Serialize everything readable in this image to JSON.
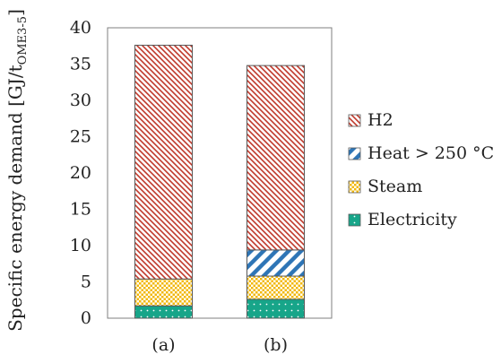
{
  "chart_data": {
    "type": "bar",
    "stacked": true,
    "categories": [
      "(a)",
      "(b)"
    ],
    "series": [
      {
        "name": "Electricity",
        "values": [
          1.7,
          2.6
        ],
        "color": "#17a589",
        "pattern": "dots"
      },
      {
        "name": "Steam",
        "values": [
          3.7,
          3.2
        ],
        "color": "#f2b705",
        "pattern": "checker"
      },
      {
        "name": "Heat > 250 °C",
        "values": [
          0.0,
          3.6
        ],
        "color": "#2e75b6",
        "pattern": "diagonal-stripes"
      },
      {
        "name": "H2",
        "values": [
          32.2,
          25.4
        ],
        "color": "#c0392b",
        "pattern": "diagonal-hatch"
      }
    ],
    "ylabel": {
      "main": "Specific energy demand [GJ/t",
      "subscript": "OME3-5",
      "close": "]"
    },
    "xlabel": "",
    "ylim": [
      0,
      40
    ],
    "yticks": [
      0,
      5,
      10,
      15,
      20,
      25,
      30,
      35,
      40
    ],
    "legend_position": "right",
    "legend_order": [
      "H2",
      "Heat > 250 °C",
      "Steam",
      "Electricity"
    ],
    "grid": false
  }
}
